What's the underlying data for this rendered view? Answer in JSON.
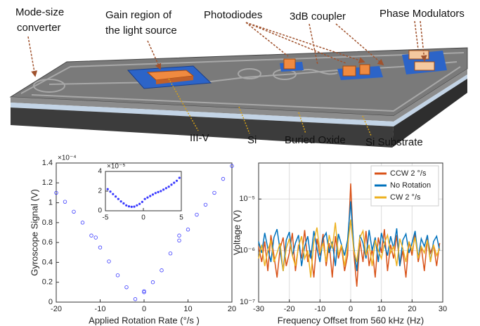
{
  "diagram": {
    "labels": [
      [
        "Mode-size",
        "converter"
      ],
      [
        "Gain region of",
        "the light source"
      ],
      [
        "Photodiodes"
      ],
      [
        "3dB coupler"
      ],
      [
        "Phase Modulators"
      ],
      [
        "III-V"
      ],
      [
        "Si"
      ],
      [
        "Buried Oxide"
      ],
      [
        "Si Substrate"
      ]
    ]
  },
  "chart_data": [
    {
      "type": "scatter",
      "x_label": "Applied Rotation Rate (°/s )",
      "y_label": "Gyroscope Signal (V)",
      "y_scale_label": "×10⁻⁴",
      "color": "#3a3aff",
      "x": [
        -20,
        -18,
        -16,
        -14,
        -12,
        -11,
        -10,
        -8,
        -6,
        -4,
        -2,
        0,
        0,
        2,
        4,
        6,
        8,
        8,
        10,
        12,
        14,
        16,
        18,
        20
      ],
      "y": [
        1.1,
        1.01,
        0.91,
        0.8,
        0.67,
        0.65,
        0.55,
        0.41,
        0.27,
        0.15,
        0.03,
        0.1,
        0.11,
        0.2,
        0.32,
        0.49,
        0.62,
        0.67,
        0.73,
        0.88,
        0.98,
        1.1,
        1.24,
        1.37
      ],
      "xlim": [
        -20,
        20
      ],
      "xticks": [
        -20,
        -10,
        0,
        10,
        20
      ],
      "ylim": [
        0,
        1.4
      ],
      "yticks": [
        0,
        0.2,
        0.4,
        0.6,
        0.8,
        1,
        1.2,
        1.4
      ]
    },
    {
      "type": "scatter",
      "inset": true,
      "y_scale_label": "×10⁻⁵",
      "color": "#3a3aff",
      "x": [
        -4.7,
        -4.35,
        -4.0,
        -3.65,
        -3.3,
        -2.95,
        -2.6,
        -2.25,
        -1.9,
        -1.55,
        -1.2,
        -0.85,
        -0.5,
        -0.15,
        0.2,
        0.55,
        0.9,
        1.25,
        1.6,
        1.95,
        2.3,
        2.65,
        3.0,
        3.35,
        3.7,
        4.05,
        4.4,
        4.75
      ],
      "y": [
        2.2,
        1.95,
        1.7,
        1.45,
        1.2,
        0.95,
        0.75,
        0.55,
        0.45,
        0.4,
        0.42,
        0.55,
        0.7,
        0.9,
        1.2,
        1.35,
        1.5,
        1.65,
        1.8,
        1.9,
        2.0,
        2.15,
        2.3,
        2.45,
        2.65,
        2.85,
        3.05,
        3.35
      ],
      "xlim": [
        -5,
        5
      ],
      "xticks": [
        -5,
        0,
        5
      ],
      "ylim": [
        0,
        4
      ],
      "yticks": [
        0,
        2,
        4
      ]
    },
    {
      "type": "line",
      "log_y": true,
      "grid": true,
      "legend": "upper right",
      "x_label": "Frequency Offset from 560 kHz (Hz)",
      "y_label": "Voltage (V)",
      "x": [
        -30,
        -29,
        -28,
        -27,
        -26,
        -25,
        -24,
        -23,
        -22,
        -21,
        -20,
        -19,
        -18,
        -17,
        -16,
        -15,
        -14,
        -13,
        -12,
        -11,
        -10,
        -9,
        -8,
        -7,
        -6,
        -5,
        -4,
        -3,
        -2,
        -1,
        0,
        1,
        2,
        3,
        4,
        5,
        6,
        7,
        8,
        9,
        10,
        11,
        12,
        13,
        14,
        15,
        16,
        17,
        18,
        19,
        20,
        21,
        22,
        23,
        24,
        25,
        26,
        27,
        28,
        29
      ],
      "series": [
        {
          "name": "CCW 2 °/s",
          "color": "#d95319",
          "values": [
            1.2e-06,
            6e-07,
            1.5e-06,
            4e-07,
            2e-06,
            8e-07,
            3e-07,
            1.1e-06,
            1.8e-06,
            5e-07,
            9e-07,
            2.2e-06,
            4e-07,
            1.3e-06,
            7e-07,
            2.5e-06,
            6e-07,
            1e-06,
            3e-07,
            1.7e-06,
            8e-07,
            2.1e-06,
            5e-07,
            1.4e-06,
            3e-07,
            1.9e-06,
            7e-07,
            1.2e-06,
            4e-07,
            8e-07,
            2e-05,
            9e-07,
            2e-07,
            1.6e-06,
            6e-07,
            2.4e-06,
            5e-07,
            1.1e-06,
            3e-07,
            1.8e-06,
            9e-07,
            2.6e-06,
            4e-07,
            1.3e-06,
            7e-07,
            2e-06,
            5e-07,
            1e-06,
            3e-07,
            1.5e-06,
            8e-07,
            2.2e-06,
            6e-07,
            1.2e-06,
            4e-07,
            1.7e-06,
            9e-07,
            1.3e-06,
            5e-07,
            1.4e-06
          ]
        },
        {
          "name": "No Rotation",
          "color": "#0072bd",
          "values": [
            1.5e-06,
            9e-07,
            2.2e-06,
            1.1e-06,
            6e-07,
            1.8e-06,
            2.6e-06,
            1e-06,
            4e-07,
            1.6e-06,
            2.3e-06,
            8e-07,
            1.4e-06,
            2e-06,
            5e-07,
            1.2e-06,
            1.9e-06,
            7e-07,
            2.4e-06,
            1.1e-06,
            6e-07,
            1.7e-06,
            2.2e-06,
            9e-07,
            1.5e-06,
            5e-07,
            2.1e-06,
            1.3e-06,
            8e-07,
            1.6e-06,
            9e-06,
            1.2e-06,
            4e-07,
            2e-06,
            1.4e-06,
            7e-07,
            2.5e-06,
            1e-06,
            1.8e-06,
            6e-07,
            2.2e-06,
            1.3e-06,
            8e-07,
            1.9e-06,
            1.1e-06,
            2.7e-06,
            5e-07,
            1.6e-06,
            2.1e-06,
            9e-07,
            1.4e-06,
            2.4e-06,
            7e-07,
            1.7e-06,
            1.2e-06,
            2e-06,
            6e-07,
            1.5e-06,
            1.9e-06,
            1e-06
          ]
        },
        {
          "name": "CW 2 °/s",
          "color": "#edb120",
          "values": [
            7e-07,
            1.3e-06,
            5e-07,
            1e-06,
            1.6e-06,
            6e-07,
            9e-07,
            1.4e-06,
            4e-07,
            1.1e-06,
            1.7e-06,
            8e-07,
            5e-07,
            1.2e-06,
            1.9e-06,
            7e-07,
            1e-06,
            3e-07,
            1.5e-06,
            2.8e-06,
            9e-07,
            1.4e-06,
            6e-07,
            2e-06,
            1.1e-06,
            3.5e-06,
            8e-07,
            1.3e-06,
            5e-07,
            1.2e-06,
            4e-06,
            1e-06,
            6e-07,
            1.8e-06,
            2.4e-06,
            8e-07,
            1.3e-06,
            5e-07,
            1.6e-06,
            1e-06,
            7e-07,
            1.4e-06,
            2e-06,
            9e-07,
            1.2e-06,
            5e-07,
            1.7e-06,
            1.1e-06,
            6e-07,
            1.5e-06,
            1e-06,
            1.8e-06,
            7e-07,
            1.2e-06,
            9e-07,
            1.6e-06,
            6e-07,
            1.3e-06,
            8e-07,
            1.1e-06
          ]
        }
      ],
      "xlim": [
        -30,
        30
      ],
      "xticks": [
        -30,
        -20,
        -10,
        0,
        10,
        20,
        30
      ],
      "ylim": [
        1e-07,
        5e-05
      ],
      "yticks": [
        {
          "value": 1e-07,
          "label": "10⁻⁷"
        },
        {
          "value": 1e-06,
          "label": "10⁻⁶"
        },
        {
          "value": 1e-05,
          "label": "10⁻⁵"
        }
      ]
    }
  ]
}
